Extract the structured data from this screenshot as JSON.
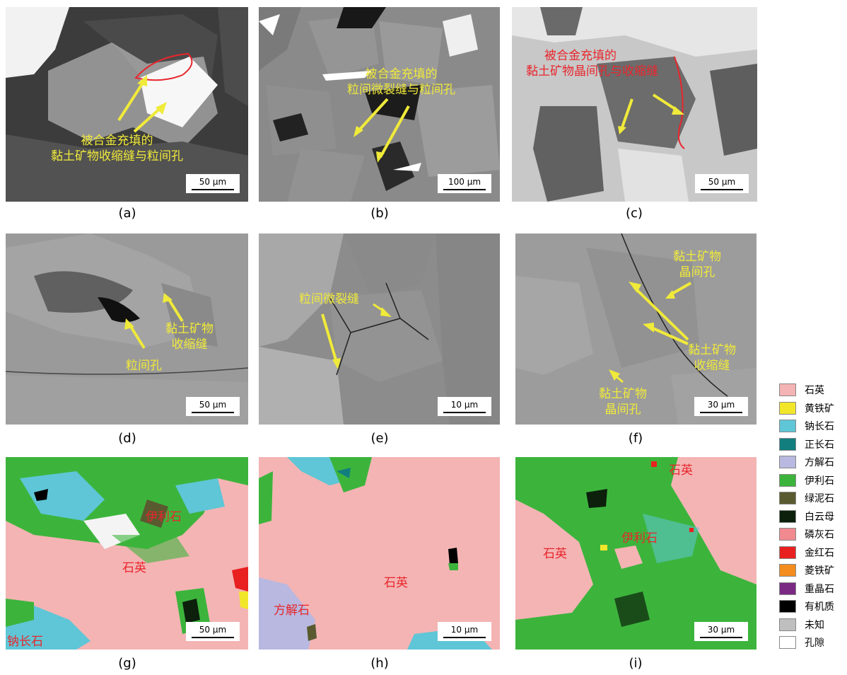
{
  "panels": {
    "a": {
      "label": "(a)",
      "scale": "50 μm",
      "note": [
        "被合金充填的",
        "黏土矿物收缩缝与粒间孔"
      ]
    },
    "b": {
      "label": "(b)",
      "scale": "100 μm",
      "note": [
        "被合金充填的",
        "粒间微裂缝与粒间孔"
      ]
    },
    "c": {
      "label": "(c)",
      "scale": "50 μm",
      "note": [
        "被合金充填的",
        "黏土矿物晶间孔与收缩缝"
      ]
    },
    "d": {
      "label": "(d)",
      "scale": "50 μm",
      "note1": [
        "黏土矿物",
        "收缩缝"
      ],
      "note2": "粒间孔"
    },
    "e": {
      "label": "(e)",
      "scale": "10 μm",
      "note": "粒间微裂缝"
    },
    "f": {
      "label": "(f)",
      "scale": "30 μm",
      "note1": [
        "黏土矿物",
        "晶间孔"
      ],
      "note2": [
        "黏土矿物",
        "收缩缝"
      ],
      "note3": [
        "黏土矿物",
        "晶间孔"
      ]
    },
    "g": {
      "label": "(g)",
      "scale": "50 μm",
      "m1": "伊利石",
      "m2": "石英",
      "m3": "钠长石"
    },
    "h": {
      "label": "(h)",
      "scale": "10 μm",
      "m1": "石英",
      "m2": "方解石"
    },
    "i": {
      "label": "(i)",
      "scale": "30 μm",
      "m1": "石英",
      "m2": "石英",
      "m3": "伊利石"
    }
  },
  "legend": [
    {
      "name": "石英",
      "color": "#f4b4b4"
    },
    {
      "name": "黄铁矿",
      "color": "#f2e62a"
    },
    {
      "name": "钠长石",
      "color": "#5ec6d6"
    },
    {
      "name": "正长石",
      "color": "#127e7e"
    },
    {
      "name": "方解石",
      "color": "#b8b8e0"
    },
    {
      "name": "伊利石",
      "color": "#3cb43c"
    },
    {
      "name": "绿泥石",
      "color": "#5a5a30"
    },
    {
      "name": "白云母",
      "color": "#0c200c"
    },
    {
      "name": "磷灰石",
      "color": "#f08a90"
    },
    {
      "name": "金红石",
      "color": "#e82020"
    },
    {
      "name": "菱铁矿",
      "color": "#f58c1e"
    },
    {
      "name": "重晶石",
      "color": "#7a2a82"
    },
    {
      "name": "有机质",
      "color": "#000000"
    },
    {
      "name": "未知",
      "color": "#bfbfbf"
    },
    {
      "name": "孔隙",
      "color": "#ffffff"
    }
  ]
}
